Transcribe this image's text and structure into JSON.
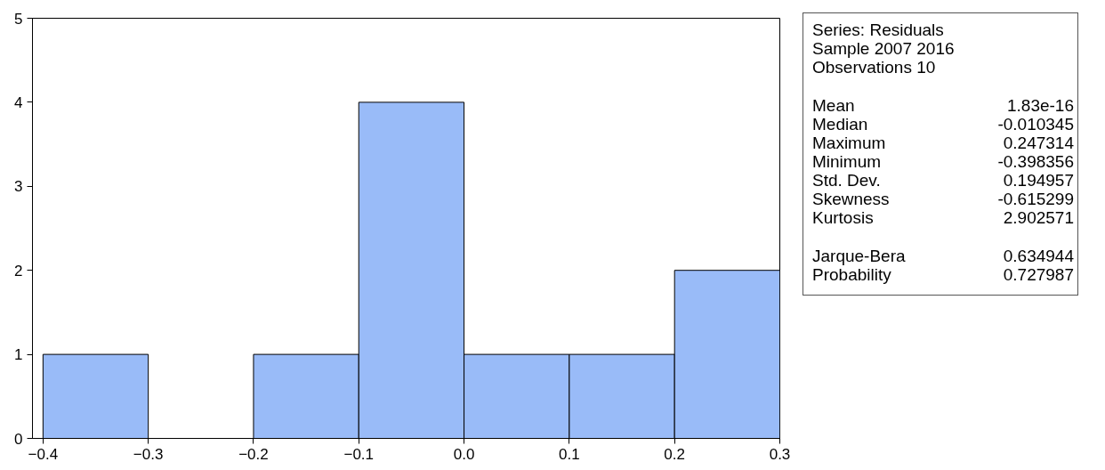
{
  "chart_data": {
    "type": "histogram",
    "bins": [
      -0.4,
      -0.3,
      -0.2,
      -0.1,
      0.0,
      0.1,
      0.2,
      0.3
    ],
    "values": [
      1,
      0,
      1,
      4,
      1,
      1,
      2
    ],
    "color": "#99bbf8",
    "xlim": [
      -0.41,
      0.3
    ],
    "xticks": [
      -0.4,
      -0.3,
      -0.2,
      -0.1,
      {
        "value": 0,
        "label": "0.0"
      },
      0.1,
      0.2,
      0.3
    ],
    "ylim": [
      0,
      5
    ],
    "yticks": [
      0,
      1,
      2,
      3,
      4,
      5
    ],
    "grid": false,
    "annotations": [
      "Series: Residuals",
      "Sample 2007 2016",
      "Observations 10",
      "Mean\t1.83e-16",
      "Median\t-0.010345",
      "Maximum\t0.247314",
      "Minimum\t-0.398356",
      "Std. Dev.\t0.194957",
      "Skewness\t-0.615299",
      "Kurtosis\t2.902571",
      "Jarque-Bera\t0.634944",
      "Probability\t0.727987"
    ]
  }
}
